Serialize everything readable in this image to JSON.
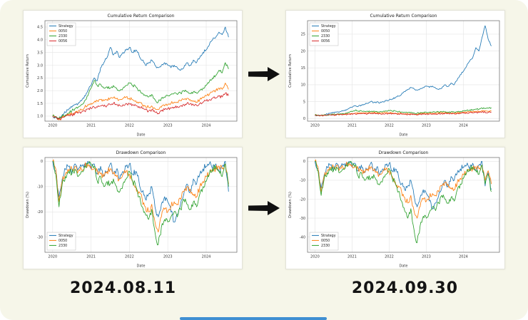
{
  "labels": {
    "before": "2024.08.11",
    "after": "2024.09.30"
  },
  "colors": {
    "blue": "#1f77b4",
    "orange": "#ff7f0e",
    "green": "#2ca02c",
    "red": "#d62728",
    "progress": "#3f8fd2"
  },
  "chart_data": [
    {
      "type": "line",
      "title": "Cumulative Return Comparison",
      "xlabel": "Date",
      "ylabel": "Cumulative Return",
      "xrange": [
        2020.0,
        2024.583
      ],
      "xlim": [
        2019.8,
        2024.8
      ],
      "ylim": [
        0.8,
        4.75
      ],
      "xticks": [
        "2020",
        "2021",
        "2022",
        "2023",
        "2024"
      ],
      "yticks": [
        "1.0",
        "1.5",
        "2.0",
        "2.5",
        "3.0",
        "3.5",
        "4.0",
        "4.5"
      ],
      "grid": true,
      "legend_pos": "top-left",
      "noise": 0.06,
      "series": [
        {
          "name": "Strategy",
          "color": "#1f77b4",
          "values": [
            1.0,
            0.95,
            0.88,
            1.05,
            1.15,
            1.25,
            1.35,
            1.45,
            1.5,
            1.6,
            1.8,
            2.0,
            2.2,
            2.5,
            2.4,
            2.9,
            3.1,
            3.3,
            3.7,
            3.4,
            3.55,
            3.3,
            3.5,
            3.6,
            3.7,
            3.5,
            3.6,
            3.4,
            3.2,
            3.0,
            3.1,
            3.2,
            3.0,
            2.9,
            3.0,
            3.1,
            3.0,
            2.9,
            3.0,
            2.9,
            2.8,
            2.9,
            3.1,
            3.0,
            3.2,
            3.1,
            3.3,
            3.5,
            3.6,
            3.8,
            4.0,
            4.1,
            4.3,
            4.2,
            4.5,
            4.1
          ]
        },
        {
          "name": "0050",
          "color": "#ff7f0e",
          "values": [
            1.0,
            0.97,
            0.85,
            0.95,
            1.0,
            1.05,
            1.1,
            1.15,
            1.2,
            1.25,
            1.35,
            1.45,
            1.5,
            1.55,
            1.6,
            1.65,
            1.6,
            1.65,
            1.7,
            1.72,
            1.68,
            1.65,
            1.7,
            1.75,
            1.7,
            1.65,
            1.6,
            1.55,
            1.45,
            1.4,
            1.35,
            1.4,
            1.3,
            1.25,
            1.35,
            1.4,
            1.45,
            1.5,
            1.55,
            1.55,
            1.6,
            1.65,
            1.7,
            1.65,
            1.6,
            1.55,
            1.65,
            1.75,
            1.8,
            1.85,
            1.95,
            2.0,
            2.1,
            2.05,
            2.3,
            2.05
          ]
        },
        {
          "name": "2330",
          "color": "#2ca02c",
          "values": [
            1.0,
            0.98,
            0.9,
            1.0,
            1.05,
            1.12,
            1.2,
            1.3,
            1.35,
            1.45,
            1.6,
            1.8,
            2.1,
            2.4,
            2.2,
            2.25,
            2.1,
            2.15,
            2.1,
            2.2,
            2.1,
            2.0,
            2.1,
            2.2,
            2.3,
            2.2,
            2.15,
            2.0,
            1.9,
            1.8,
            1.75,
            1.85,
            1.65,
            1.55,
            1.7,
            1.75,
            1.8,
            1.85,
            1.9,
            1.85,
            1.9,
            2.0,
            1.95,
            1.9,
            1.95,
            1.9,
            2.0,
            2.1,
            2.2,
            2.35,
            2.5,
            2.6,
            2.8,
            2.7,
            3.1,
            2.85
          ]
        },
        {
          "name": "0056",
          "color": "#d62728",
          "values": [
            1.0,
            0.98,
            0.88,
            0.95,
            1.0,
            1.02,
            1.05,
            1.1,
            1.12,
            1.15,
            1.2,
            1.28,
            1.3,
            1.35,
            1.35,
            1.4,
            1.38,
            1.42,
            1.45,
            1.5,
            1.45,
            1.42,
            1.45,
            1.5,
            1.48,
            1.45,
            1.42,
            1.38,
            1.3,
            1.25,
            1.2,
            1.25,
            1.15,
            1.1,
            1.2,
            1.25,
            1.3,
            1.32,
            1.35,
            1.38,
            1.4,
            1.45,
            1.5,
            1.48,
            1.45,
            1.42,
            1.5,
            1.55,
            1.6,
            1.65,
            1.7,
            1.72,
            1.78,
            1.75,
            1.9,
            1.8
          ]
        }
      ]
    },
    {
      "type": "line",
      "title": "Cumulative Return Comparison",
      "xlabel": "Date",
      "ylabel": "Cumulative Return",
      "xrange": [
        2020.0,
        2024.75
      ],
      "xlim": [
        2019.8,
        2024.97
      ],
      "ylim": [
        -0.8,
        29
      ],
      "xticks": [
        "2020",
        "2021",
        "2022",
        "2023",
        "2024"
      ],
      "yticks": [
        "0",
        "5",
        "10",
        "15",
        "20",
        "25"
      ],
      "grid": true,
      "legend_pos": "top-left",
      "noise": 0.22,
      "series": [
        {
          "name": "Strategy",
          "color": "#1f77b4",
          "values": [
            1.0,
            0.95,
            0.9,
            1.1,
            1.3,
            1.5,
            1.7,
            1.9,
            2.0,
            2.2,
            2.6,
            3.0,
            3.3,
            3.8,
            3.6,
            4.0,
            4.2,
            4.5,
            5.0,
            4.7,
            4.9,
            4.6,
            5.0,
            5.3,
            5.5,
            5.8,
            6.2,
            6.6,
            7.2,
            8.0,
            8.6,
            9.2,
            8.8,
            8.4,
            8.8,
            9.2,
            9.6,
            9.2,
            9.6,
            9.0,
            8.6,
            9.0,
            10.0,
            9.5,
            10.5,
            10.0,
            11.5,
            13.0,
            14.0,
            15.5,
            17.0,
            18.0,
            21.0,
            20.0,
            24.0,
            27.5,
            23.5,
            21.5
          ]
        },
        {
          "name": "0050",
          "color": "#ff7f0e",
          "values": [
            1.0,
            0.97,
            0.85,
            0.95,
            1.0,
            1.05,
            1.1,
            1.15,
            1.2,
            1.25,
            1.35,
            1.45,
            1.5,
            1.55,
            1.6,
            1.65,
            1.6,
            1.65,
            1.7,
            1.72,
            1.68,
            1.65,
            1.7,
            1.75,
            1.7,
            1.65,
            1.6,
            1.55,
            1.45,
            1.4,
            1.35,
            1.4,
            1.3,
            1.25,
            1.35,
            1.4,
            1.45,
            1.5,
            1.55,
            1.55,
            1.6,
            1.65,
            1.7,
            1.65,
            1.6,
            1.55,
            1.65,
            1.75,
            1.8,
            1.85,
            1.95,
            2.0,
            2.1,
            2.05,
            2.3,
            2.2,
            2.1,
            2.15
          ]
        },
        {
          "name": "2330",
          "color": "#2ca02c",
          "values": [
            1.0,
            0.98,
            0.9,
            1.0,
            1.05,
            1.12,
            1.2,
            1.3,
            1.35,
            1.45,
            1.6,
            1.8,
            2.1,
            2.4,
            2.2,
            2.25,
            2.1,
            2.15,
            2.1,
            2.2,
            2.1,
            2.0,
            2.1,
            2.2,
            2.3,
            2.2,
            2.15,
            2.0,
            1.9,
            1.8,
            1.75,
            1.85,
            1.65,
            1.55,
            1.7,
            1.75,
            1.8,
            1.85,
            1.9,
            1.85,
            1.9,
            2.0,
            1.95,
            1.9,
            1.95,
            1.9,
            2.0,
            2.1,
            2.2,
            2.35,
            2.5,
            2.6,
            2.8,
            2.7,
            3.1,
            2.9,
            3.0,
            3.2
          ]
        },
        {
          "name": "0056",
          "color": "#d62728",
          "values": [
            1.0,
            0.98,
            0.88,
            0.95,
            1.0,
            1.02,
            1.05,
            1.1,
            1.12,
            1.15,
            1.2,
            1.28,
            1.3,
            1.35,
            1.35,
            1.4,
            1.38,
            1.42,
            1.45,
            1.5,
            1.45,
            1.42,
            1.45,
            1.5,
            1.48,
            1.45,
            1.42,
            1.38,
            1.3,
            1.25,
            1.2,
            1.25,
            1.15,
            1.1,
            1.2,
            1.25,
            1.3,
            1.32,
            1.35,
            1.38,
            1.4,
            1.45,
            1.5,
            1.48,
            1.45,
            1.42,
            1.5,
            1.55,
            1.6,
            1.65,
            1.7,
            1.72,
            1.78,
            1.75,
            1.9,
            1.85,
            1.8,
            1.9
          ]
        }
      ]
    },
    {
      "type": "line",
      "title": "Drawdown Comparison",
      "xlabel": "Date",
      "ylabel": "Drawdown (%)",
      "xrange": [
        2020.0,
        2024.583
      ],
      "xlim": [
        2019.8,
        2024.8
      ],
      "ylim": [
        -36,
        1.5
      ],
      "xticks": [
        "2020",
        "2021",
        "2022",
        "2023",
        "2024"
      ],
      "yticks": [
        "0",
        "-10",
        "-20",
        "-30"
      ],
      "grid": true,
      "legend_pos": "bottom-left",
      "noise": 1.4,
      "series": [
        {
          "name": "Strategy",
          "color": "#1f77b4",
          "values": [
            0,
            -4,
            -14,
            -7,
            -3,
            -2,
            -5,
            -1,
            -3,
            -2,
            -1,
            0,
            -3,
            -1,
            -5,
            -2,
            -6,
            -4,
            -1,
            -5,
            -3,
            -7,
            -4,
            -2,
            -1,
            -5,
            -4,
            -8,
            -12,
            -15,
            -13,
            -10,
            -18,
            -22,
            -17,
            -14,
            -16,
            -20,
            -24,
            -21,
            -17,
            -13,
            -9,
            -12,
            -7,
            -9,
            -5,
            -3,
            -2,
            -1,
            -3,
            -1,
            -4,
            -2,
            0,
            -12
          ]
        },
        {
          "name": "0050",
          "color": "#ff7f0e",
          "values": [
            0,
            -3,
            -16,
            -8,
            -5,
            -4,
            -3,
            -2,
            -4,
            -3,
            -2,
            -1,
            -2,
            -3,
            -4,
            -5,
            -6,
            -4,
            -3,
            -5,
            -6,
            -7,
            -5,
            -4,
            -5,
            -8,
            -10,
            -12,
            -15,
            -18,
            -20,
            -17,
            -24,
            -28,
            -22,
            -19,
            -20,
            -18,
            -16,
            -17,
            -15,
            -12,
            -10,
            -11,
            -13,
            -14,
            -10,
            -8,
            -6,
            -5,
            -4,
            -3,
            -2,
            -3,
            -1,
            -9
          ]
        },
        {
          "name": "2330",
          "color": "#2ca02c",
          "values": [
            0,
            -5,
            -18,
            -9,
            -6,
            -4,
            -5,
            -3,
            -6,
            -4,
            -2,
            -1,
            -1,
            -2,
            -8,
            -6,
            -10,
            -8,
            -9,
            -7,
            -10,
            -12,
            -9,
            -7,
            -4,
            -8,
            -10,
            -14,
            -18,
            -21,
            -23,
            -19,
            -28,
            -33,
            -26,
            -23,
            -24,
            -22,
            -20,
            -22,
            -19,
            -15,
            -17,
            -19,
            -16,
            -18,
            -13,
            -10,
            -8,
            -5,
            -3,
            -2,
            -4,
            -6,
            -1,
            -10
          ]
        }
      ]
    },
    {
      "type": "line",
      "title": "Drawdown Comparison",
      "xlabel": "Date",
      "ylabel": "Drawdown (%)",
      "xrange": [
        2020.0,
        2024.75
      ],
      "xlim": [
        2019.8,
        2024.97
      ],
      "ylim": [
        -48,
        2
      ],
      "xticks": [
        "2020",
        "2021",
        "2022",
        "2023",
        "2024"
      ],
      "yticks": [
        "0",
        "-10",
        "-20",
        "-30",
        "-40"
      ],
      "grid": true,
      "legend_pos": "bottom-left",
      "noise": 1.6,
      "series": [
        {
          "name": "Strategy",
          "color": "#1f77b4",
          "values": [
            0,
            -4,
            -14,
            -7,
            -3,
            -2,
            -5,
            -1,
            -3,
            -2,
            -1,
            0,
            -3,
            -1,
            -5,
            -2,
            -6,
            -4,
            -1,
            -5,
            -3,
            -7,
            -4,
            -2,
            -1,
            -5,
            -4,
            -8,
            -12,
            -15,
            -13,
            -10,
            -18,
            -24,
            -19,
            -15,
            -17,
            -21,
            -25,
            -22,
            -18,
            -14,
            -10,
            -13,
            -8,
            -10,
            -6,
            -4,
            -3,
            -2,
            -4,
            -1,
            -5,
            -2,
            0,
            -13,
            -6,
            -15
          ]
        },
        {
          "name": "0050",
          "color": "#ff7f0e",
          "values": [
            0,
            -3,
            -16,
            -8,
            -5,
            -4,
            -3,
            -2,
            -4,
            -3,
            -2,
            -1,
            -2,
            -3,
            -4,
            -5,
            -6,
            -4,
            -3,
            -5,
            -6,
            -7,
            -5,
            -4,
            -5,
            -8,
            -11,
            -13,
            -16,
            -19,
            -22,
            -18,
            -26,
            -30,
            -24,
            -20,
            -21,
            -19,
            -17,
            -18,
            -16,
            -13,
            -11,
            -12,
            -14,
            -15,
            -11,
            -9,
            -7,
            -6,
            -5,
            -4,
            -3,
            -4,
            -2,
            -10,
            -5,
            -12
          ]
        },
        {
          "name": "2330",
          "color": "#2ca02c",
          "values": [
            0,
            -5,
            -18,
            -9,
            -6,
            -4,
            -5,
            -3,
            -6,
            -4,
            -2,
            -1,
            -1,
            -2,
            -8,
            -6,
            -10,
            -8,
            -9,
            -7,
            -10,
            -12,
            -9,
            -7,
            -4,
            -9,
            -12,
            -16,
            -21,
            -26,
            -30,
            -25,
            -36,
            -43,
            -34,
            -29,
            -30,
            -27,
            -24,
            -26,
            -22,
            -18,
            -20,
            -22,
            -19,
            -21,
            -15,
            -12,
            -9,
            -6,
            -4,
            -3,
            -5,
            -7,
            -2,
            -12,
            -7,
            -16
          ]
        }
      ]
    }
  ]
}
